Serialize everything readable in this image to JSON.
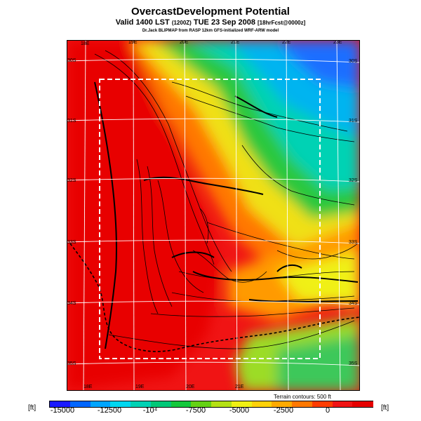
{
  "title": "OvercastDevelopment Potential",
  "subtitle_main": "Valid 1400 LST",
  "subtitle_small": "(1200Z)",
  "subtitle_date": "TUE 23 Sep 2008",
  "subtitle_fcst": "[18hrFcst@0000z]",
  "credit": "Dr.Jack BLIPMAP from RASP 12km GFS-initialized WRF-ARW model",
  "lon_labels_top": [
    "18E",
    "19E",
    "20E",
    "21E",
    "22E",
    "23E"
  ],
  "lon_labels_bottom": [
    "18E",
    "19E",
    "20E",
    "21E"
  ],
  "lat_labels_left": [
    "30S",
    "31S",
    "32S",
    "33S",
    "34S",
    "35S"
  ],
  "lat_labels_right": [
    "30S",
    "31S",
    "32S",
    "33S",
    "34S",
    "35S"
  ],
  "terrain_note": "Terrain contours: 500 ft",
  "colorbar": {
    "unit": "[ft]",
    "ticks": [
      "-15000",
      "-12500",
      "-10⁴",
      "-7500",
      "-5000",
      "-2500",
      "0"
    ],
    "colors": [
      "#1a1aff",
      "#0066ff",
      "#00a5ff",
      "#00d7f0",
      "#00d2b4",
      "#00c878",
      "#14c83c",
      "#64d214",
      "#b4e114",
      "#f0f014",
      "#ffd20a",
      "#ffaa00",
      "#ff7800",
      "#ff3c00",
      "#f01414",
      "#e60000"
    ]
  },
  "colors": {
    "frame": "#000000",
    "grid": "#ffffff",
    "hot": "#f01414",
    "cold": "#00a5ff"
  }
}
